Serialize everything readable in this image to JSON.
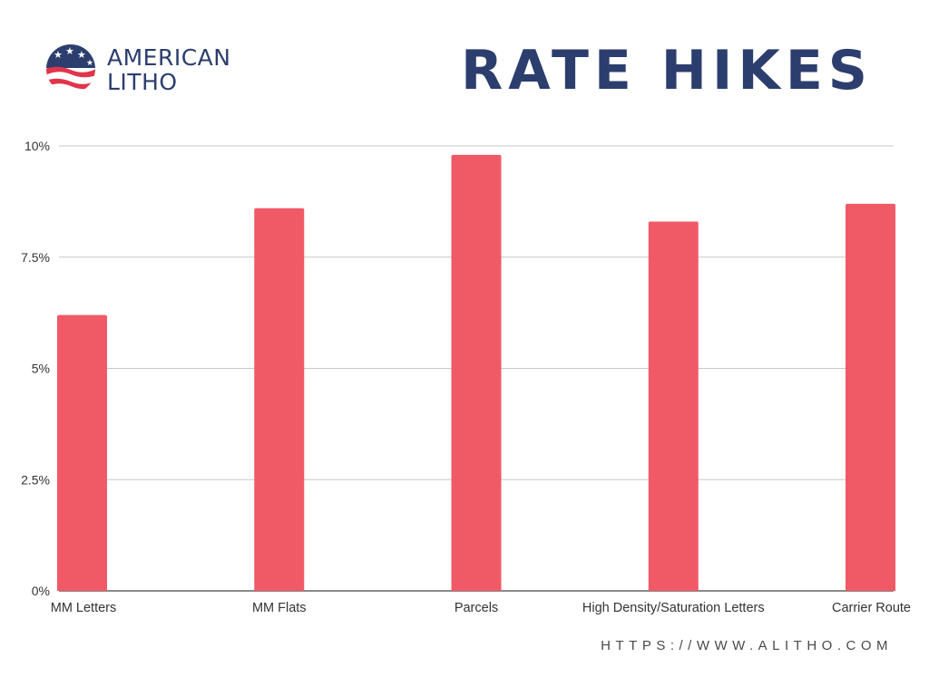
{
  "brand": {
    "line1": "AMERICAN",
    "line2": "LITHO",
    "colors": {
      "navy": "#2c3e6e",
      "red": "#e0354b"
    }
  },
  "header": {
    "title": "RATE HIKES"
  },
  "footer": {
    "url": "HTTPS://WWW.ALITHO.COM"
  },
  "chart_data": {
    "type": "bar",
    "title": "RATE HIKES",
    "categories": [
      "MM Letters",
      "MM Flats",
      "Parcels",
      "High Density/Saturation Letters",
      "Carrier Route"
    ],
    "values": [
      6.2,
      8.6,
      9.8,
      8.3,
      8.7
    ],
    "yticks": [
      "0%",
      "2.5%",
      "5%",
      "7.5%",
      "10%"
    ],
    "ylim": [
      0,
      10
    ],
    "xlabel": "",
    "ylabel": "",
    "grid": true,
    "legend": "none",
    "bar_color": "#f05a66"
  }
}
